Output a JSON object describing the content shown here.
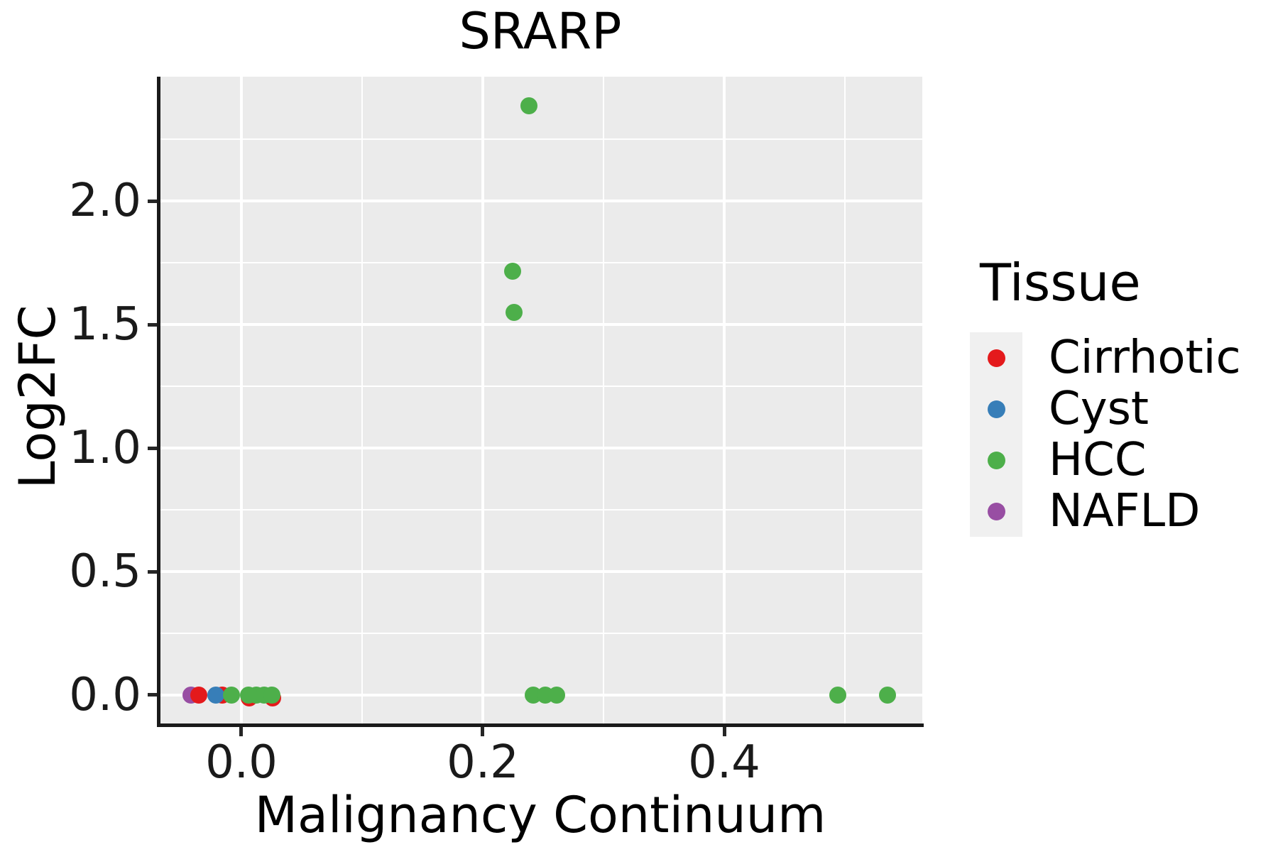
{
  "title": "SRARP",
  "chart_data": {
    "type": "scatter",
    "title": "SRARP",
    "xlabel": "Malignancy Continuum",
    "ylabel": "Log2FC",
    "xlim": [
      -0.0688,
      0.5641
    ],
    "ylim": [
      -0.1207,
      2.503
    ],
    "grid": true,
    "x_major_ticks": [
      0.0,
      0.2,
      0.4
    ],
    "x_tick_labels": [
      "0.0",
      "0.2",
      "0.4"
    ],
    "x_minor_gridlines": [
      0.1,
      0.3,
      0.5
    ],
    "y_major_ticks": [
      0.0,
      0.5,
      1.0,
      1.5,
      2.0
    ],
    "y_tick_labels": [
      "0.0",
      "0.5",
      "1.0",
      "1.5",
      "2.0"
    ],
    "y_minor_gridlines": [
      0.25,
      0.75,
      1.25,
      1.75,
      2.25
    ],
    "legend_position": "right",
    "legend_title": "Tissue",
    "point_radius_px": 12,
    "series": [
      {
        "name": "NAFLD",
        "color": "#984EA3",
        "points": [
          [
            -0.042,
            0.0
          ]
        ]
      },
      {
        "name": "Cirrhotic",
        "color": "#E41A1C",
        "points": [
          [
            -0.035,
            0.0
          ],
          [
            -0.016,
            0.0
          ],
          [
            0.0065,
            -0.012
          ],
          [
            0.026,
            -0.012
          ]
        ]
      },
      {
        "name": "Cyst",
        "color": "#377EB8",
        "points": [
          [
            -0.021,
            0.0
          ]
        ]
      },
      {
        "name": "HCC",
        "color": "#4DAF4A",
        "points": [
          [
            -0.008,
            0.0
          ],
          [
            0.006,
            0.0
          ],
          [
            0.0124,
            0.0
          ],
          [
            0.019,
            0.0
          ],
          [
            0.0253,
            0.0
          ],
          [
            0.242,
            0.0
          ],
          [
            0.252,
            0.0
          ],
          [
            0.261,
            0.0
          ],
          [
            0.494,
            0.0
          ],
          [
            0.535,
            0.0
          ],
          [
            0.226,
            1.549
          ],
          [
            0.225,
            1.716
          ],
          [
            0.238,
            2.385
          ]
        ]
      }
    ]
  },
  "legend": {
    "title": "Tissue",
    "items": [
      {
        "label": "Cirrhotic",
        "color": "#E41A1C"
      },
      {
        "label": "Cyst",
        "color": "#377EB8"
      },
      {
        "label": "HCC",
        "color": "#4DAF4A"
      },
      {
        "label": "NAFLD",
        "color": "#984EA3"
      }
    ]
  },
  "style": {
    "panel_bg": "#EBEBEB",
    "grid_color": "#FFFFFF",
    "axis_color": "#1A1A1A",
    "tick_color": "#262626",
    "legend_key_bg": "#F0F0F0"
  }
}
